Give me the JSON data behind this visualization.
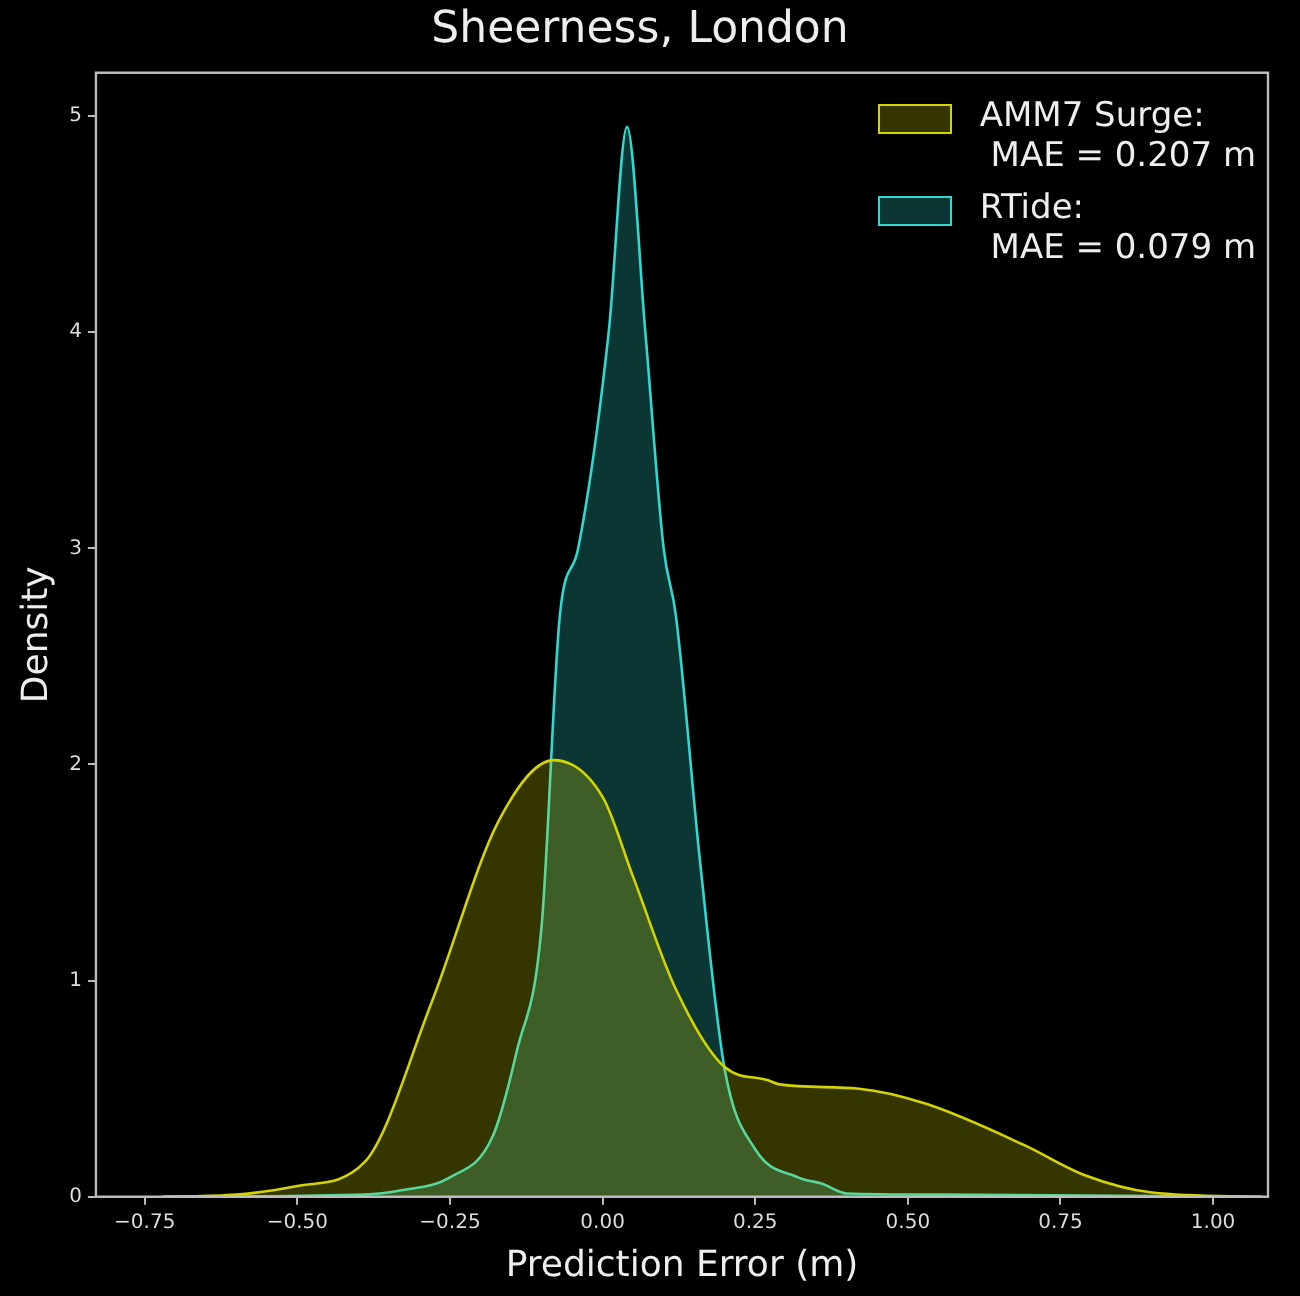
{
  "chart_data": {
    "type": "area",
    "title": "Sheerness, London",
    "xlabel": "Prediction Error (m)",
    "ylabel": "Density",
    "xlim": [
      -0.83,
      1.09
    ],
    "ylim": [
      0,
      5.2
    ],
    "xticks": [
      {
        "value": -0.75,
        "label": "−0.75"
      },
      {
        "value": -0.5,
        "label": "−0.50"
      },
      {
        "value": -0.25,
        "label": "−0.25"
      },
      {
        "value": 0,
        "label": "0.00"
      },
      {
        "value": 0.25,
        "label": "0.25"
      },
      {
        "value": 0.5,
        "label": "0.50"
      },
      {
        "value": 0.75,
        "label": "0.75"
      },
      {
        "value": 1,
        "label": "1.00"
      }
    ],
    "yticks": [
      0,
      1,
      2,
      3,
      4,
      5
    ],
    "grid": false,
    "legend": "top right",
    "series": [
      {
        "name": "AMM7 Surge:\n MAE = 0.207 m",
        "color": "#d4d400",
        "x": [
          -0.72,
          -0.6,
          -0.5,
          -0.39,
          -0.28,
          -0.17,
          -0.08,
          0,
          0.05,
          0.12,
          0.2,
          0.27,
          0.29,
          0.42,
          0.53,
          0.69,
          0.79,
          0.9,
          1.08
        ],
        "values": [
          0,
          0.01,
          0.05,
          0.16,
          0.9,
          1.74,
          2.02,
          1.85,
          1.48,
          0.96,
          0.6,
          0.54,
          0.52,
          0.5,
          0.43,
          0.24,
          0.1,
          0.02,
          0
        ]
      },
      {
        "name": "RTide:\n MAE = 0.079 m",
        "color": "#2fd8d0",
        "x": [
          -0.72,
          -0.39,
          -0.33,
          -0.25,
          -0.18,
          -0.14,
          -0.1,
          -0.07,
          -0.04,
          0.01,
          0.04,
          0.07,
          0.1,
          0.12,
          0.16,
          0.2,
          0.25,
          0.32,
          0.36,
          0.4,
          0.55,
          1.08
        ],
        "values": [
          0,
          0.01,
          0.03,
          0.09,
          0.28,
          0.68,
          1.25,
          2.69,
          3,
          4,
          4.95,
          4,
          3,
          2.69,
          1.54,
          0.59,
          0.22,
          0.09,
          0.06,
          0.015,
          0.01,
          0
        ]
      }
    ]
  }
}
